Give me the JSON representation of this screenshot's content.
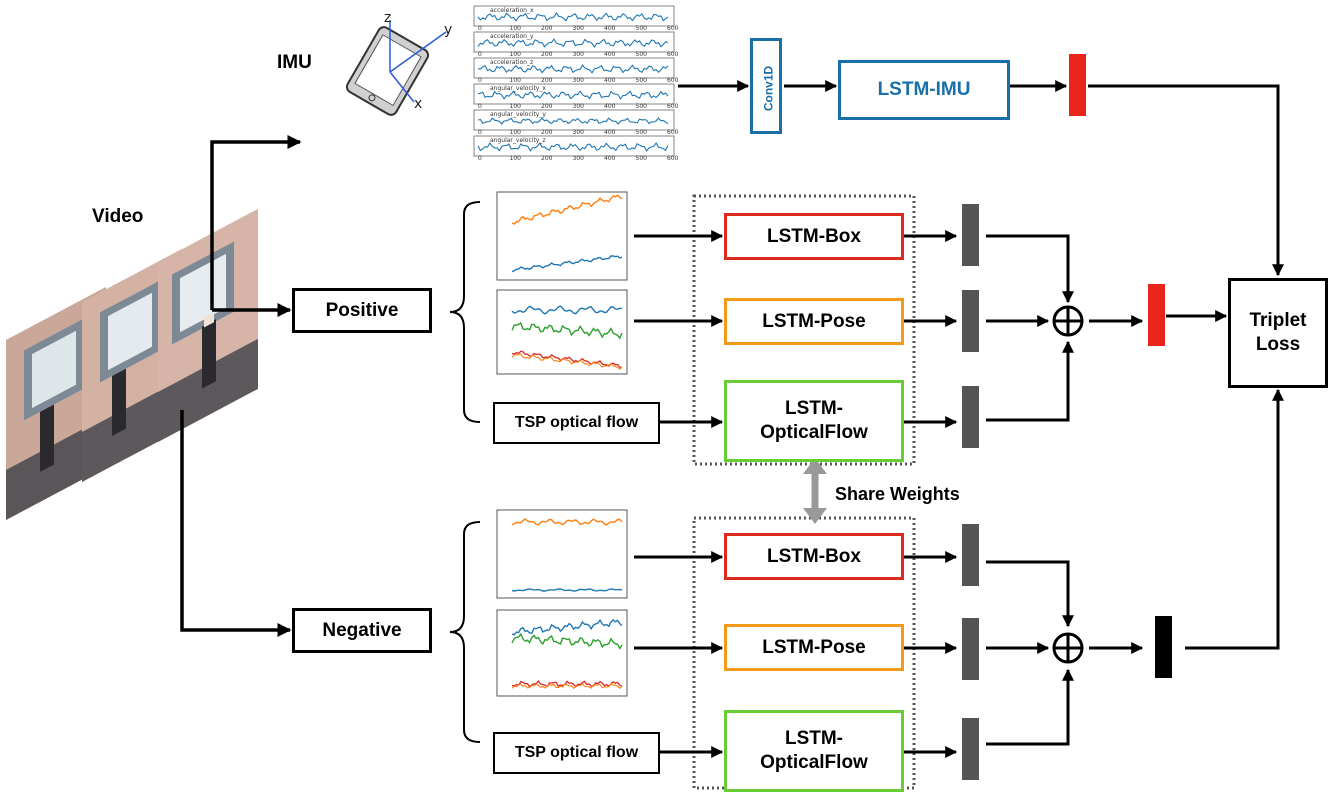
{
  "labels": {
    "imu": "IMU",
    "video": "Video",
    "share_weights": "Share Weights"
  },
  "imu_axes": {
    "x": "x",
    "y": "y",
    "z": "z"
  },
  "imu_plots": {
    "series": [
      "acceleration_x",
      "acceleration_y",
      "acceleration_z",
      "angular_velocity_x",
      "angular_velocity_y",
      "angular_velocity_z"
    ],
    "x_ticks": [
      "0",
      "100",
      "200",
      "300",
      "400",
      "500",
      "600"
    ]
  },
  "boxes": {
    "conv1d": "Conv1D",
    "lstm_imu": "LSTM-IMU",
    "positive": "Positive",
    "negative": "Negative",
    "tsp_pos": "TSP optical flow",
    "tsp_neg": "TSP optical flow",
    "lstm_box_pos": "LSTM-Box",
    "lstm_pose_pos": "LSTM-Pose",
    "lstm_flow_pos": "LSTM-\nOpticalFlow",
    "lstm_box_neg": "LSTM-Box",
    "lstm_pose_neg": "LSTM-Pose",
    "lstm_flow_neg": "LSTM-\nOpticalFlow",
    "triplet_loss": "Triplet\nLoss"
  },
  "colors": {
    "box_red": "#dd2a1f",
    "pose_orange": "#f39a18",
    "flow_green": "#67cc36",
    "imu_blue": "#1a6fa8",
    "feature_gray": "#555555",
    "feature_red": "#e8251a",
    "feature_black": "#000000"
  }
}
